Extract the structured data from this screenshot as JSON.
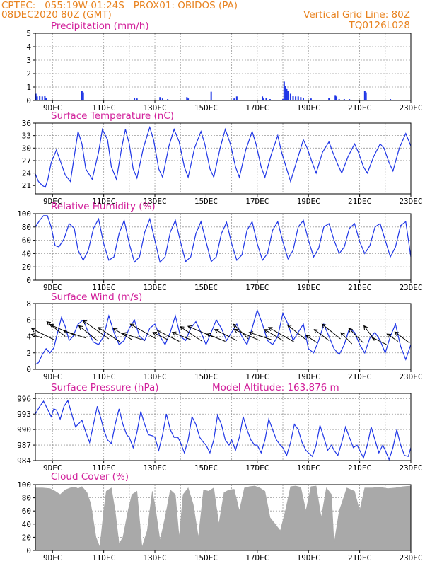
{
  "header": {
    "line1_left": "CPTEC:   055:19W-01:24S   PROX01: OBIDOS (PA)",
    "line2_left": "08DEC2020 80Z (GMT)",
    "line1_right": "Vertical Grid Line: 80Z",
    "line2_right": "TQ0126L028"
  },
  "colors": {
    "header": "#e8821e",
    "panel_title": "#d11f9a",
    "series": "#1e35e6",
    "cloud": "#a9a9a9",
    "arrows": "#000000",
    "grid": "#9a9a9a"
  },
  "x_axis": {
    "tick_labels": [
      "9DEC",
      "11DEC",
      "13DEC",
      "15DEC",
      "17DEC",
      "19DEC",
      "21DEC",
      "23DEC"
    ],
    "tick_days": [
      9,
      11,
      13,
      15,
      17,
      19,
      21,
      23
    ],
    "day_range": [
      8.33,
      23
    ]
  },
  "chart_data": [
    {
      "id": "precip",
      "type": "bar",
      "title": "Precipitation (mm/h)",
      "ylim": [
        0,
        5
      ],
      "yticks": [
        0,
        1,
        2,
        3,
        4,
        5
      ],
      "ytick_labels": [
        "0",
        "1",
        "2",
        "3",
        "4",
        "5"
      ],
      "x": [
        8.35,
        8.4,
        8.5,
        8.6,
        8.7,
        8.75,
        10.15,
        10.2,
        12.2,
        12.3,
        13.2,
        13.3,
        13.5,
        14.25,
        14.3,
        15.2,
        16.1,
        16.2,
        17.2,
        17.25,
        17.35,
        17.5,
        18.0,
        18.05,
        18.1,
        18.15,
        18.2,
        18.3,
        18.4,
        18.5,
        18.6,
        18.7,
        18.8,
        19.1,
        19.8,
        20.05,
        20.1,
        20.2,
        20.4,
        20.6,
        21.2,
        21.25,
        22.2
      ],
      "values": [
        0.5,
        0.3,
        0.35,
        0.3,
        0.35,
        0.2,
        0.7,
        0.6,
        0.2,
        0.15,
        0.25,
        0.15,
        0.1,
        0.25,
        0.15,
        0.65,
        0.15,
        0.3,
        0.3,
        0.15,
        0.2,
        0.1,
        0.1,
        1.4,
        1.1,
        0.85,
        0.7,
        0.5,
        0.35,
        0.3,
        0.3,
        0.25,
        0.2,
        0.15,
        0.2,
        0.4,
        0.3,
        0.1,
        0.1,
        0.1,
        0.7,
        0.6,
        0.1
      ]
    },
    {
      "id": "temperature",
      "type": "line",
      "title": "Surface Temperature (nC)",
      "ylim": [
        19,
        36
      ],
      "yticks": [
        21,
        24,
        27,
        30,
        33,
        36
      ],
      "ytick_labels": [
        "21",
        "24",
        "27",
        "30",
        "33",
        "36"
      ],
      "x": [
        8.33,
        8.45,
        8.6,
        8.72,
        8.82,
        8.95,
        9.15,
        9.3,
        9.5,
        9.7,
        9.85,
        10.0,
        10.15,
        10.3,
        10.55,
        10.8,
        10.95,
        11.15,
        11.3,
        11.5,
        11.7,
        11.85,
        12.0,
        12.15,
        12.3,
        12.55,
        12.8,
        12.95,
        13.15,
        13.3,
        13.55,
        13.75,
        13.95,
        14.15,
        14.3,
        14.55,
        14.8,
        14.95,
        15.15,
        15.3,
        15.55,
        15.75,
        15.95,
        16.15,
        16.3,
        16.55,
        16.8,
        16.95,
        17.15,
        17.3,
        17.55,
        17.8,
        17.95,
        18.15,
        18.3,
        18.55,
        18.8,
        18.95,
        19.15,
        19.3,
        19.55,
        19.8,
        19.95,
        20.15,
        20.3,
        20.55,
        20.8,
        20.95,
        21.15,
        21.3,
        21.55,
        21.8,
        21.95,
        22.15,
        22.3,
        22.55,
        22.8,
        23.0
      ],
      "series": [
        {
          "values": [
            23.8,
            22.0,
            21.0,
            20.6,
            22.5,
            26.5,
            29.5,
            27.0,
            23.5,
            22.0,
            28.0,
            34.0,
            31.0,
            25.0,
            22.5,
            29.0,
            34.5,
            32.0,
            25.5,
            22.5,
            30.0,
            34.5,
            31.0,
            25.0,
            22.8,
            30.0,
            35.0,
            32.0,
            25.0,
            23.0,
            30.5,
            34.5,
            31.5,
            25.5,
            23.0,
            30.0,
            34.0,
            31.0,
            25.0,
            23.0,
            30.0,
            34.5,
            31.0,
            25.5,
            23.0,
            29.5,
            34.0,
            31.0,
            25.5,
            23.0,
            28.5,
            33.0,
            29.0,
            25.0,
            22.0,
            27.0,
            32.0,
            30.0,
            26.5,
            24.0,
            29.0,
            31.5,
            29.0,
            26.0,
            24.0,
            28.0,
            31.0,
            29.0,
            25.5,
            24.0,
            28.0,
            31.0,
            30.0,
            26.5,
            24.5,
            30.0,
            33.5,
            30.5
          ]
        }
      ]
    },
    {
      "id": "humidity",
      "type": "line",
      "title": "Relative Humidity (%)",
      "ylim": [
        0,
        100
      ],
      "yticks": [
        0,
        20,
        40,
        60,
        80,
        100
      ],
      "ytick_labels": [
        "0",
        "20",
        "40",
        "60",
        "80",
        "100"
      ],
      "x": [
        8.33,
        8.5,
        8.65,
        8.8,
        8.95,
        9.1,
        9.25,
        9.45,
        9.65,
        9.85,
        10.0,
        10.2,
        10.4,
        10.6,
        10.8,
        11.0,
        11.2,
        11.4,
        11.6,
        11.8,
        12.0,
        12.2,
        12.4,
        12.6,
        12.8,
        13.0,
        13.2,
        13.4,
        13.6,
        13.8,
        14.0,
        14.2,
        14.4,
        14.6,
        14.8,
        15.0,
        15.2,
        15.4,
        15.6,
        15.8,
        16.0,
        16.2,
        16.4,
        16.6,
        16.8,
        17.0,
        17.2,
        17.4,
        17.6,
        17.8,
        18.0,
        18.2,
        18.4,
        18.6,
        18.8,
        19.0,
        19.2,
        19.4,
        19.6,
        19.8,
        20.0,
        20.2,
        20.4,
        20.6,
        20.8,
        21.0,
        21.2,
        21.4,
        21.6,
        21.8,
        22.0,
        22.2,
        22.4,
        22.6,
        22.8,
        23.0
      ],
      "series": [
        {
          "values": [
            80,
            90,
            97,
            97,
            80,
            52,
            50,
            62,
            85,
            78,
            45,
            30,
            45,
            78,
            92,
            55,
            30,
            35,
            70,
            90,
            55,
            27,
            35,
            72,
            92,
            60,
            27,
            35,
            72,
            90,
            58,
            28,
            35,
            70,
            88,
            58,
            28,
            35,
            70,
            87,
            55,
            30,
            38,
            75,
            88,
            55,
            30,
            40,
            75,
            88,
            58,
            32,
            45,
            80,
            90,
            60,
            35,
            48,
            80,
            85,
            60,
            40,
            50,
            78,
            85,
            58,
            40,
            52,
            80,
            85,
            60,
            35,
            50,
            82,
            88,
            35
          ]
        }
      ]
    },
    {
      "id": "wind",
      "type": "line",
      "title": "Surface Wind (m/s)",
      "ylim": [
        0,
        8
      ],
      "yticks": [
        0,
        2,
        4,
        6,
        8
      ],
      "ytick_labels": [
        "0",
        "2",
        "4",
        "6",
        "8"
      ],
      "x": [
        8.33,
        8.45,
        8.6,
        8.75,
        8.9,
        9.05,
        9.2,
        9.35,
        9.5,
        9.65,
        9.8,
        10.0,
        10.2,
        10.4,
        10.6,
        10.8,
        11.0,
        11.2,
        11.4,
        11.6,
        11.8,
        12.0,
        12.2,
        12.4,
        12.6,
        12.8,
        13.0,
        13.2,
        13.4,
        13.6,
        13.8,
        14.0,
        14.2,
        14.4,
        14.6,
        14.8,
        15.0,
        15.2,
        15.4,
        15.6,
        15.8,
        16.0,
        16.2,
        16.4,
        16.6,
        16.8,
        17.0,
        17.2,
        17.4,
        17.6,
        17.8,
        18.0,
        18.2,
        18.4,
        18.6,
        18.8,
        19.0,
        19.2,
        19.4,
        19.6,
        19.8,
        20.0,
        20.2,
        20.4,
        20.6,
        20.8,
        21.0,
        21.2,
        21.4,
        21.6,
        21.8,
        22.0,
        22.2,
        22.4,
        22.6,
        22.8,
        23.0
      ],
      "series": [
        {
          "values": [
            0.6,
            0.8,
            1.8,
            2.5,
            2.0,
            2.6,
            4.5,
            6.3,
            5.2,
            3.5,
            4.0,
            5.5,
            6.0,
            4.5,
            3.3,
            3.0,
            4.0,
            6.5,
            4.5,
            3.0,
            3.5,
            5.0,
            6.0,
            4.0,
            3.5,
            5.0,
            5.5,
            4.0,
            3.0,
            4.5,
            6.5,
            4.0,
            3.5,
            5.0,
            5.8,
            4.5,
            3.0,
            4.5,
            6.0,
            5.0,
            3.5,
            4.5,
            5.5,
            4.0,
            3.0,
            5.0,
            7.2,
            5.5,
            3.5,
            3.0,
            4.0,
            6.8,
            5.5,
            3.5,
            4.5,
            5.5,
            2.5,
            2.0,
            3.5,
            5.5,
            4.0,
            2.5,
            1.8,
            3.0,
            5.0,
            4.5,
            3.0,
            2.0,
            3.8,
            4.5,
            3.5,
            2.0,
            4.0,
            5.5,
            2.8,
            1.2,
            3.0
          ]
        }
      ]
    },
    {
      "id": "pressure",
      "type": "line",
      "title": "Surface Pressure (hPa)",
      "annotation": "Model Altitude: 163.876 m",
      "ylim": [
        984,
        997
      ],
      "yticks": [
        984,
        987,
        990,
        993,
        996
      ],
      "ytick_labels": [
        "984",
        "987",
        "990",
        "993",
        "996"
      ],
      "x": [
        8.33,
        8.5,
        8.65,
        8.8,
        8.95,
        9.05,
        9.15,
        9.3,
        9.45,
        9.6,
        9.75,
        9.9,
        10.0,
        10.15,
        10.3,
        10.45,
        10.6,
        10.75,
        10.9,
        11.0,
        11.15,
        11.3,
        11.45,
        11.6,
        11.75,
        11.9,
        12.0,
        12.15,
        12.3,
        12.45,
        12.6,
        12.75,
        12.9,
        13.0,
        13.15,
        13.3,
        13.45,
        13.6,
        13.75,
        13.9,
        14.0,
        14.15,
        14.3,
        14.45,
        14.6,
        14.75,
        14.9,
        15.0,
        15.15,
        15.3,
        15.45,
        15.6,
        15.75,
        15.9,
        16.0,
        16.15,
        16.3,
        16.45,
        16.6,
        16.75,
        16.9,
        17.0,
        17.15,
        17.3,
        17.45,
        17.6,
        17.75,
        17.9,
        18.0,
        18.15,
        18.3,
        18.45,
        18.6,
        18.75,
        18.9,
        19.0,
        19.15,
        19.3,
        19.45,
        19.6,
        19.75,
        19.9,
        20.0,
        20.15,
        20.3,
        20.45,
        20.6,
        20.75,
        20.9,
        21.0,
        21.15,
        21.3,
        21.45,
        21.6,
        21.75,
        21.9,
        22.0,
        22.15,
        22.3,
        22.45,
        22.6,
        22.75,
        22.9,
        23.0
      ],
      "series": [
        {
          "values": [
            993.0,
            994.5,
            995.5,
            994.0,
            992.5,
            994.0,
            993.8,
            992.0,
            994.5,
            995.6,
            993.0,
            990.5,
            991.0,
            991.8,
            989.5,
            987.5,
            991.0,
            994.5,
            992.0,
            990.0,
            988.0,
            987.3,
            991.0,
            994.0,
            991.0,
            989.0,
            988.5,
            986.5,
            989.5,
            993.5,
            991.0,
            989.0,
            988.8,
            988.5,
            986.0,
            989.0,
            993.0,
            990.0,
            988.5,
            988.5,
            987.5,
            985.5,
            988.0,
            992.5,
            991.0,
            988.5,
            987.5,
            987.0,
            985.5,
            988.0,
            992.8,
            991.0,
            988.0,
            987.0,
            988.0,
            986.0,
            988.5,
            992.5,
            990.0,
            988.0,
            987.0,
            987.0,
            985.5,
            988.0,
            992.0,
            990.0,
            988.0,
            987.0,
            986.5,
            985.0,
            987.5,
            991.0,
            990.0,
            987.5,
            986.0,
            985.5,
            984.8,
            987.0,
            990.8,
            988.5,
            986.0,
            987.0,
            986.0,
            985.0,
            987.5,
            990.5,
            988.5,
            986.5,
            987.0,
            986.0,
            984.5,
            987.0,
            990.5,
            988.0,
            985.5,
            987.0,
            986.0,
            984.2,
            986.5,
            990.0,
            987.0,
            985.0,
            984.8,
            986.5
          ]
        }
      ]
    },
    {
      "id": "cloud",
      "type": "area",
      "title": "Cloud Cover (%)",
      "ylim": [
        0,
        100
      ],
      "yticks": [
        0,
        20,
        40,
        60,
        80,
        100
      ],
      "ytick_labels": [
        "0",
        "20",
        "40",
        "60",
        "80",
        "100"
      ],
      "x": [
        8.33,
        8.6,
        8.9,
        9.1,
        9.3,
        9.5,
        9.7,
        9.9,
        10.0,
        10.15,
        10.35,
        10.5,
        10.7,
        10.85,
        11.0,
        11.1,
        11.3,
        11.45,
        11.6,
        11.75,
        11.95,
        12.1,
        12.3,
        12.5,
        12.7,
        12.9,
        13.0,
        13.2,
        13.4,
        13.6,
        13.8,
        13.95,
        14.1,
        14.3,
        14.5,
        14.7,
        14.9,
        15.1,
        15.3,
        15.5,
        15.7,
        15.9,
        16.1,
        16.3,
        16.5,
        16.7,
        16.9,
        17.1,
        17.3,
        17.5,
        17.7,
        17.9,
        18.1,
        18.3,
        18.5,
        18.7,
        18.9,
        19.1,
        19.3,
        19.5,
        19.7,
        19.9,
        20.0,
        20.2,
        20.5,
        20.8,
        21.0,
        21.2,
        21.5,
        21.8,
        22.1,
        22.4,
        22.7,
        23.0
      ],
      "series": [
        {
          "values": [
            95,
            95,
            94,
            90,
            85,
            92,
            95,
            96,
            94,
            97,
            88,
            70,
            20,
            5,
            60,
            90,
            95,
            60,
            10,
            20,
            60,
            85,
            90,
            5,
            30,
            90,
            70,
            15,
            50,
            92,
            85,
            20,
            85,
            95,
            70,
            20,
            92,
            90,
            95,
            40,
            88,
            92,
            93,
            60,
            95,
            97,
            98,
            95,
            90,
            50,
            40,
            30,
            60,
            97,
            98,
            96,
            60,
            97,
            98,
            50,
            95,
            85,
            10,
            60,
            95,
            90,
            60,
            95,
            95,
            96,
            94,
            95,
            97,
            98
          ]
        }
      ]
    },
    {
      "id": "wind_vectors",
      "type": "scatter",
      "x": [
        8.6,
        9.05,
        9.5,
        9.9,
        10.3,
        10.75,
        11.2,
        11.65,
        12.1,
        12.6,
        13.05,
        13.5,
        13.95,
        14.4,
        14.85,
        15.3,
        15.75,
        16.2,
        16.65,
        17.1,
        17.55,
        18.0,
        18.45,
        18.9,
        19.35,
        19.8,
        20.25,
        20.7,
        21.15,
        21.6,
        22.05,
        22.5,
        22.95
      ],
      "y": [
        3.8,
        3.6,
        4.0,
        4.1,
        3.8,
        3.5,
        3.7,
        3.3,
        3.6,
        3.5,
        3.7,
        3.6,
        3.4,
        3.6,
        3.4,
        3.9,
        3.4,
        3.5,
        3.7,
        3.5,
        3.6,
        3.5,
        3.3,
        3.6,
        3.2,
        3.5,
        3.7,
        3.1,
        3.2,
        3.5,
        3.0,
        3.4,
        3.2
      ],
      "u": [
        -3,
        -6,
        -5,
        -7,
        -6,
        -5,
        -7,
        -6,
        -5,
        -6,
        -7,
        -4,
        -6,
        -5,
        -6,
        -7,
        -5,
        -6,
        -4,
        -7,
        -6,
        -5,
        -7,
        -5,
        -3,
        -4,
        -5,
        -3,
        -4,
        -3,
        -4,
        -3,
        -4
      ],
      "v": [
        1,
        3,
        4,
        3,
        2,
        4,
        5,
        4,
        3,
        2,
        4,
        2,
        3,
        2,
        4,
        3,
        2,
        3,
        4,
        3,
        2,
        3,
        4,
        4,
        2,
        3,
        4,
        3,
        4,
        4,
        2,
        2,
        3
      ]
    }
  ]
}
